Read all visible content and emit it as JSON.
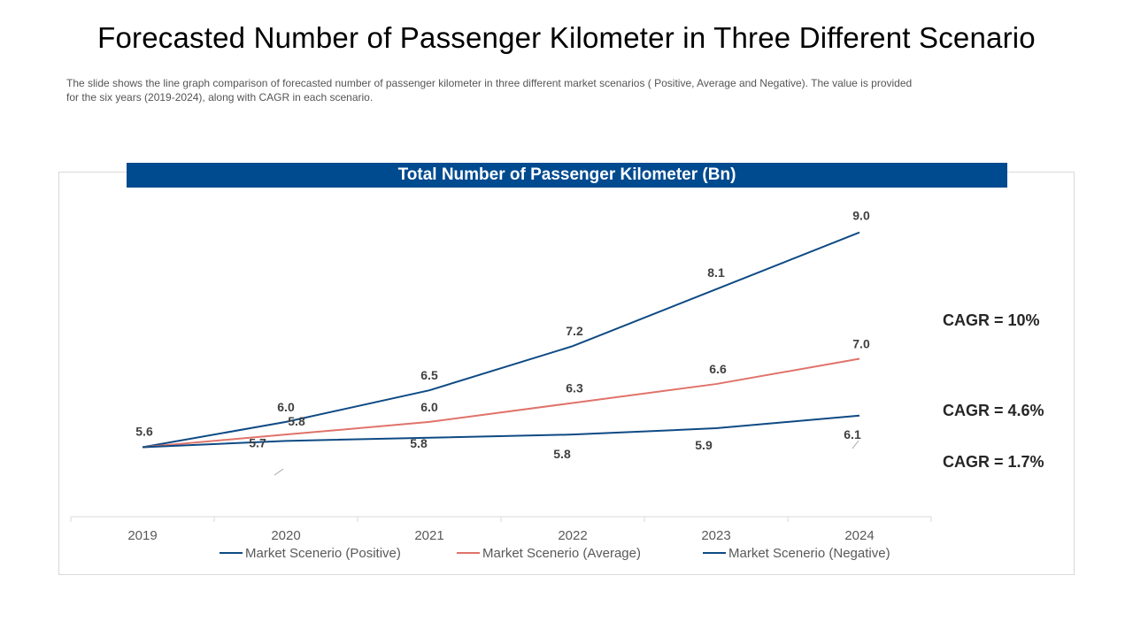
{
  "title": "Forecasted Number of Passenger Kilometer in Three Different Scenario",
  "description": "The slide shows the line graph comparison of forecasted number of passenger kilometer in three different market scenarios ( Positive, Average and Negative). The value is provided for the six years (2019-2024), along with CAGR in each scenario.",
  "cagr_labels": [
    "CAGR = 10%",
    "CAGR = 4.6%",
    "CAGR = 1.7%"
  ],
  "colors": {
    "banner": "#004a8f",
    "positive": "#0e4a84",
    "average": "#e0736a",
    "negative": "#0e4a84"
  },
  "chart_data": {
    "type": "line",
    "title": "Total Number of Passenger Kilometer (Bn)",
    "xlabel": "",
    "ylabel": "",
    "categories": [
      "2019",
      "2020",
      "2021",
      "2022",
      "2023",
      "2024"
    ],
    "ylim": [
      4.5,
      9.5
    ],
    "grid": false,
    "legend": "bottom",
    "series": [
      {
        "name": "Market Scenerio (Positive)",
        "values": [
          5.6,
          6.0,
          6.5,
          7.2,
          8.1,
          9.0
        ],
        "color": "#0e4a84",
        "labels": [
          "5.6",
          "6.0",
          "6.5",
          "7.2",
          "8.1",
          "9.0"
        ]
      },
      {
        "name": "Market Scenerio (Average)",
        "values": [
          5.6,
          5.8,
          6.0,
          6.3,
          6.6,
          7.0
        ],
        "color": "#e0736a",
        "labels": [
          "",
          "5.8",
          "6.0",
          "6.3",
          "6.6",
          "7.0"
        ]
      },
      {
        "name": "Market Scenerio (Negative)",
        "values": [
          5.6,
          5.7,
          5.75,
          5.8,
          5.9,
          6.1
        ],
        "color": "#0e4a84",
        "labels": [
          "",
          "5.7",
          "5.8",
          "5.8",
          "5.9",
          "6.1"
        ]
      }
    ]
  }
}
